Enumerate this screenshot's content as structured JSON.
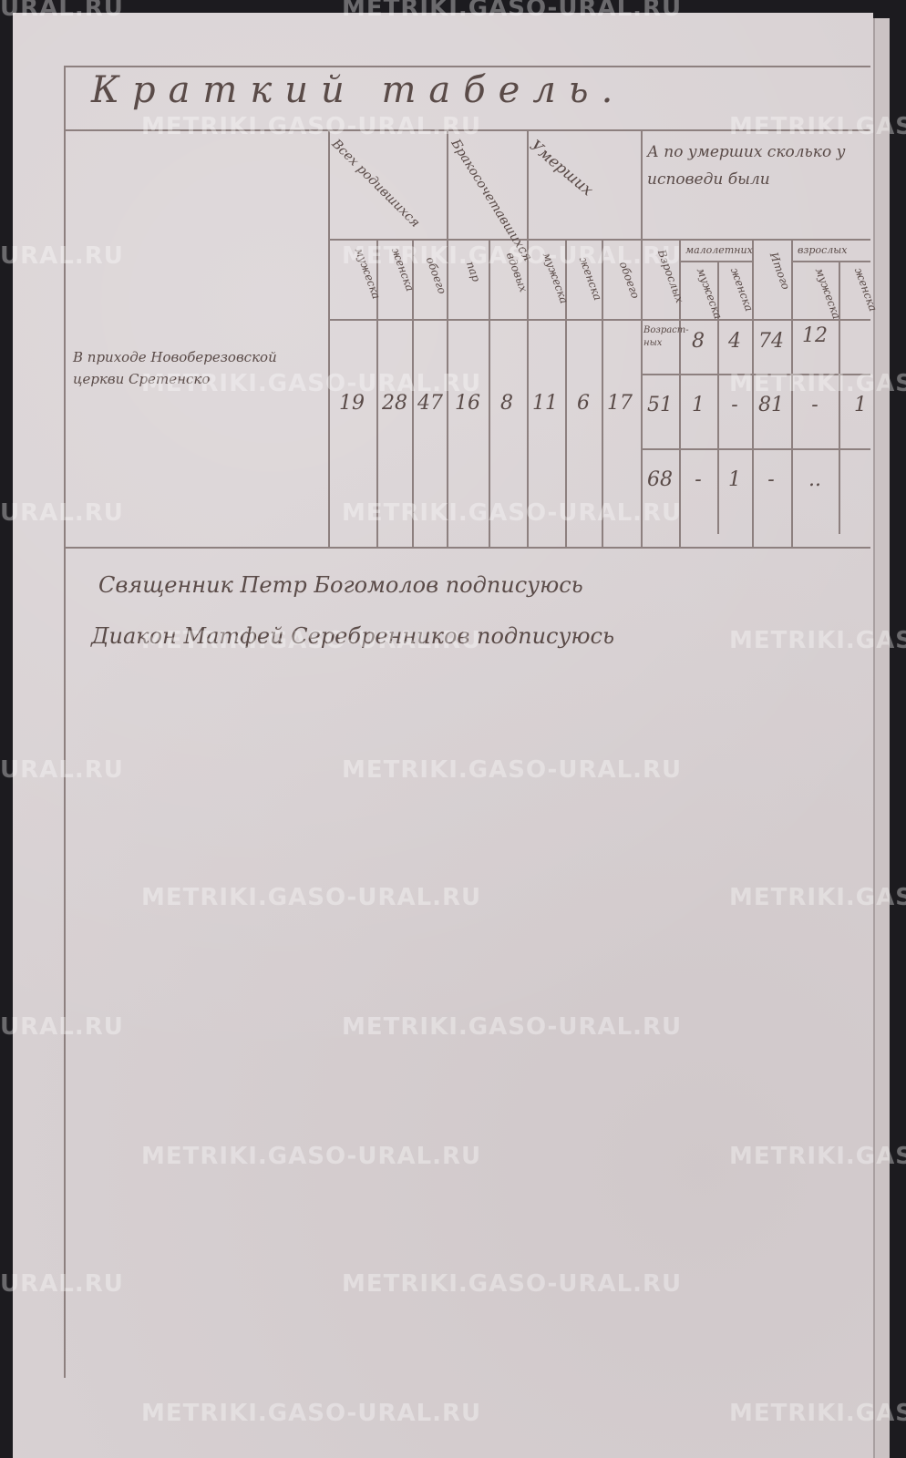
{
  "title": "Краткий табель.",
  "table": {
    "row_label": "В приходе Новоберезовской церкви Сретенско",
    "groups": [
      "Всех родившихся",
      "Бракосочетавшихся",
      "Умерших",
      "А по умерших сколько у исповеди были"
    ],
    "subheaders": [
      "мужеска",
      "женска",
      "обоего",
      "пар",
      "вдовых",
      "мужеска",
      "женска",
      "обоего",
      "Взрослых",
      "мужеска",
      "женска",
      "Итого",
      "мужеска",
      "женска"
    ],
    "sub_groups": [
      "малолетних",
      "взрослых"
    ],
    "values": [
      "19",
      "28",
      "47",
      "16",
      "8",
      "11",
      "6",
      "17"
    ],
    "upper_row": {
      "label": "Возраст-ных",
      "values": [
        "8",
        "4",
        "74",
        "12"
      ]
    },
    "middle_row": [
      "51",
      "1",
      "-",
      "81",
      "-",
      "1"
    ],
    "lower_row": [
      "68",
      "-",
      "1",
      "-",
      ".."
    ]
  },
  "signatures": [
    "Священник Петр Богомолов подписуюсь",
    "Диакон Матфей Серебренников подписуюсь"
  ],
  "watermark": "METRIKI.GASO-URAL.RU",
  "watermark_short": "URAL.RU"
}
